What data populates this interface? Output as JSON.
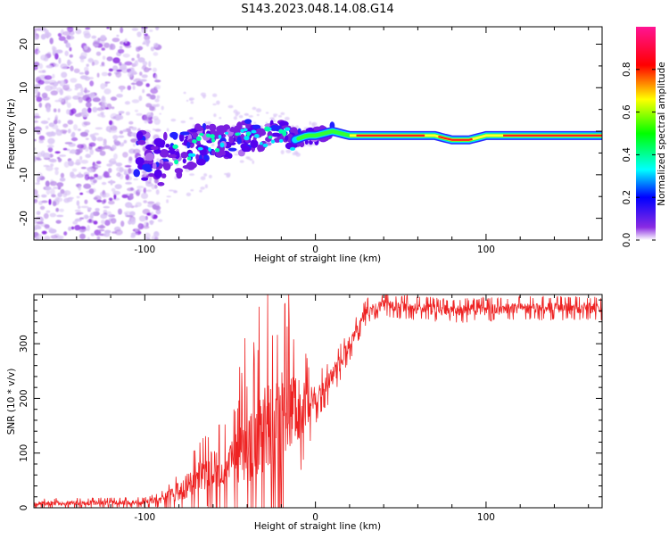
{
  "figure": {
    "title": "S143.2023.048.14.08.G14"
  },
  "chart_data": [
    {
      "type": "heatmap",
      "xlabel": "Height of straight line (km)",
      "ylabel": "Frequency (Hz)",
      "xlim": [
        -165,
        168
      ],
      "ylim": [
        -25,
        24
      ],
      "xticks": [
        -100,
        0,
        100
      ],
      "yticks": [
        -20,
        -10,
        0,
        10,
        20
      ],
      "colorbar": {
        "label": "Normalized spectral amplitude",
        "range": [
          0,
          1
        ],
        "ticks": [
          "0.0",
          "0.2",
          "0.4",
          "0.6",
          "0.8"
        ],
        "colormap": [
          "#ffffff",
          "#8000ff",
          "#0000ff",
          "#00ffff",
          "#00ff00",
          "#ffff00",
          "#ff0000",
          "#ff1493"
        ]
      },
      "ridge": {
        "x": [
          -100,
          -90,
          -80,
          -70,
          -60,
          -50,
          -40,
          -30,
          -20,
          -12,
          -5,
          0,
          10,
          20,
          30,
          40,
          50,
          60,
          70,
          80,
          90,
          100,
          110,
          120,
          130,
          140,
          150,
          160,
          168
        ],
        "y": [
          -6,
          -7,
          -5,
          -3,
          -2,
          -3,
          -1,
          -1,
          0,
          -2,
          -1,
          -1,
          0,
          -1,
          -1,
          -1,
          -1,
          -1,
          -1,
          -2,
          -2,
          -1,
          -1,
          -1,
          -1,
          -1,
          -1,
          -1,
          -1
        ]
      }
    },
    {
      "type": "line",
      "xlabel": "Height of straight line (km)",
      "ylabel": "SNR (10 * v/v)",
      "xlim": [
        -165,
        168
      ],
      "ylim": [
        0,
        390
      ],
      "xticks": [
        -100,
        0,
        100
      ],
      "yticks": [
        0,
        100,
        200,
        300
      ],
      "color": "#ee2222",
      "envelope": {
        "x": [
          -165,
          -100,
          -90,
          -80,
          -70,
          -60,
          -50,
          -40,
          -30,
          -20,
          -10,
          0,
          10,
          20,
          30,
          40,
          60,
          80,
          100,
          120,
          140,
          168
        ],
        "mean": [
          8,
          10,
          15,
          30,
          50,
          70,
          80,
          100,
          140,
          160,
          180,
          200,
          240,
          300,
          360,
          370,
          365,
          360,
          362,
          365,
          365,
          365
        ],
        "spread": [
          6,
          6,
          10,
          25,
          40,
          50,
          55,
          90,
          110,
          130,
          80,
          30,
          25,
          20,
          15,
          14,
          14,
          14,
          14,
          14,
          14,
          14
        ]
      }
    }
  ]
}
